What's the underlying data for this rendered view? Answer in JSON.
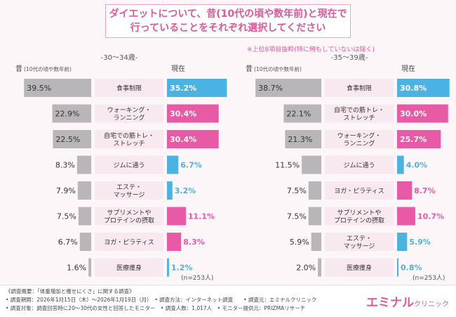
{
  "title": {
    "line1": "ダイエットについて、昔(10代の頃や数年前)と現在で",
    "line2": "行っていることをそれぞれ選択してください"
  },
  "note": "※上位8項目抜粋(特に何もしていないは除く)",
  "colors": {
    "past_bar": "#b8b6b9",
    "present_first": "#4ab3e3",
    "present_pink": "#e85aa5",
    "present_blue": "#4ab3e3",
    "label_bg": "#f7e9ef",
    "age_label": "#555555"
  },
  "chart_data": [
    {
      "type": "bar",
      "age_group": "-30～34歳-",
      "past_header": "昔",
      "past_header_sub": "(10代の頃や数年前)",
      "present_header": "現在",
      "n_label": "(n=253人)",
      "unit": "%",
      "series": [
        {
          "name": "昔",
          "categories": [
            "食事制限",
            "ウォーキング・ランニング",
            "自宅での筋トレ・ストレッチ",
            "ジムに通う",
            "エステ・マッサージ",
            "サプリメントやプロテインの摂取",
            "ヨガ・ピラティス",
            "医療痩身"
          ],
          "values": [
            39.5,
            22.9,
            22.5,
            8.3,
            7.9,
            7.5,
            6.7,
            1.6
          ]
        },
        {
          "name": "現在",
          "categories": [
            "食事制限",
            "ウォーキング・ランニング",
            "自宅での筋トレ・ストレッチ",
            "ジムに通う",
            "エステ・マッサージ",
            "サプリメントやプロテインの摂取",
            "ヨガ・ピラティス",
            "医療痩身"
          ],
          "values": [
            35.2,
            30.4,
            30.4,
            6.7,
            3.2,
            11.1,
            8.3,
            1.2
          ]
        }
      ],
      "labels": [
        [
          "食事制限"
        ],
        [
          "ウォーキング・",
          "ランニング"
        ],
        [
          "自宅での筋トレ・",
          "ストレッチ"
        ],
        [
          "ジムに通う"
        ],
        [
          "エステ・",
          "マッサージ"
        ],
        [
          "サプリメントや",
          "プロテインの摂取"
        ],
        [
          "ヨガ・ピラティス"
        ],
        [
          "医療痩身"
        ]
      ]
    },
    {
      "type": "bar",
      "age_group": "-35～39歳-",
      "past_header": "昔",
      "past_header_sub": "(10代の頃や数年前)",
      "present_header": "現在",
      "n_label": "(n=253人)",
      "unit": "%",
      "series": [
        {
          "name": "昔",
          "categories": [
            "食事制限",
            "自宅での筋トレ・ストレッチ",
            "ウォーキング・ランニング",
            "ジムに通う",
            "ヨガ・ピラティス",
            "サプリメントやプロテインの摂取",
            "エステ・マッサージ",
            "医療痩身"
          ],
          "values": [
            38.7,
            22.1,
            21.3,
            11.5,
            7.5,
            7.5,
            5.9,
            2.0
          ]
        },
        {
          "name": "現在",
          "categories": [
            "食事制限",
            "自宅での筋トレ・ストレッチ",
            "ウォーキング・ランニング",
            "ジムに通う",
            "ヨガ・ピラティス",
            "サプリメントやプロテインの摂取",
            "エステ・マッサージ",
            "医療痩身"
          ],
          "values": [
            30.8,
            30.0,
            25.7,
            4.0,
            8.7,
            10.7,
            5.9,
            0.8
          ]
        }
      ],
      "labels": [
        [
          "食事制限"
        ],
        [
          "自宅での筋トレ・",
          "ストレッチ"
        ],
        [
          "ウォーキング・",
          "ランニング"
        ],
        [
          "ジムに通う"
        ],
        [
          "ヨガ・ピラティス"
        ],
        [
          "サプリメントや",
          "プロテインの摂取"
        ],
        [
          "エステ・",
          "マッサージ"
        ],
        [
          "医療痩身"
        ]
      ]
    }
  ],
  "footer": {
    "line1": "《調査概要：「体重増加と痩せにくさ」に関する調査》",
    "line2": "• 調査期間：2026年1月15日（木）～2026年1月19日（月）　• 調査方法：インターネット調査　　• 調査元：エミナルクリニック",
    "line3": "• 調査対象：調査回答時に20～30代の女性と回答したモニター　• 調査人数：1,017人　• モニター提供元：PRIZMAリサーチ"
  },
  "logo": {
    "main": "エミナル",
    "sub": "クリニック"
  }
}
